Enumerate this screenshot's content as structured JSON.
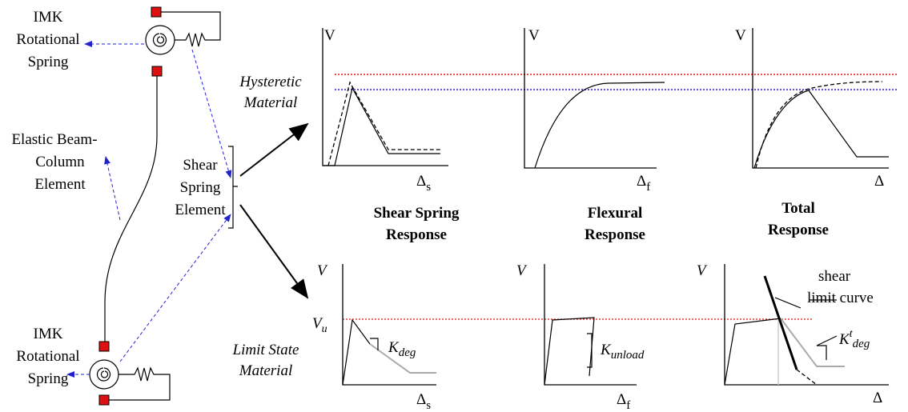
{
  "left_labels": {
    "top_spring": [
      "IMK",
      "Rotational",
      "Spring"
    ],
    "beam_column": [
      "Elastic Beam-",
      "Column",
      "Element"
    ],
    "shear_spring": [
      "Shear",
      "Spring",
      "Element"
    ],
    "bottom_spring": [
      "IMK",
      "Rotational",
      "Spring"
    ]
  },
  "materials": {
    "hysteretic": [
      "Hysteretic",
      "Material"
    ],
    "limit_state": [
      "Limit State",
      "Material"
    ]
  },
  "top_plots": [
    {
      "y_axis": "V",
      "x_axis": {
        "base": "Δ",
        "sub": "s"
      },
      "caption": [
        "Shear Spring",
        "Response"
      ]
    },
    {
      "y_axis": "V",
      "x_axis": {
        "base": "Δ",
        "sub": "f"
      },
      "caption": [
        "Flexural",
        "Response"
      ]
    },
    {
      "y_axis": "V",
      "x_axis": {
        "base": "Δ"
      },
      "caption": [
        "Total",
        "Response"
      ]
    }
  ],
  "bottom_plots": [
    {
      "y_axis": "V",
      "x_axis": {
        "base": "Δ",
        "sub": "s"
      },
      "limit": {
        "base": "V",
        "sub": "u"
      },
      "stiffness": {
        "base": "K",
        "sub": "deg"
      }
    },
    {
      "y_axis": "V",
      "x_axis": {
        "base": "Δ",
        "sub": "f"
      },
      "stiffness": {
        "base": "K",
        "sub": "unload"
      }
    },
    {
      "y_axis": "V",
      "x_axis": {
        "base": "Δ"
      },
      "curve_label": [
        "shear",
        "limit curve"
      ],
      "stiffness": {
        "base": "K",
        "sup": "t",
        "sub": "deg"
      }
    }
  ]
}
